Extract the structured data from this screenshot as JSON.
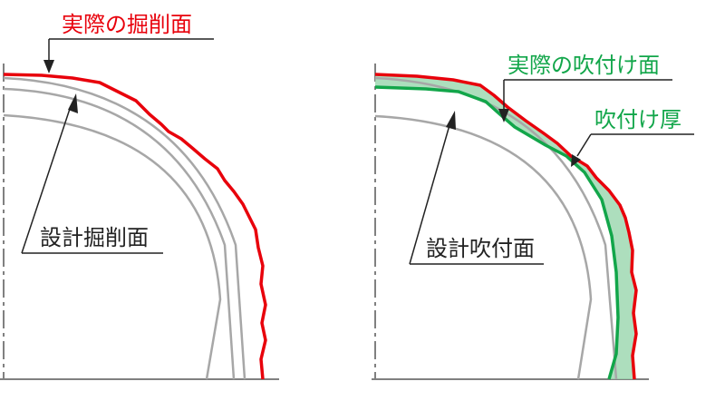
{
  "left_panel": {
    "actual_excavation_label": "実際の掘削面",
    "design_excavation_label": "設計掘削面"
  },
  "right_panel": {
    "actual_shotcrete_label": "実際の吹付け面",
    "shotcrete_thickness_label": "吹付け厚",
    "design_shotcrete_label": "設計吹付面"
  },
  "colors": {
    "actual_excavation": "#e8000b",
    "shotcrete_edge": "#12a64a",
    "shotcrete_fill": "#9fd8b2",
    "design_lines": "#a7a7a7",
    "axis": "#808080",
    "leader": "#222222",
    "label_green": "#12a64a"
  }
}
